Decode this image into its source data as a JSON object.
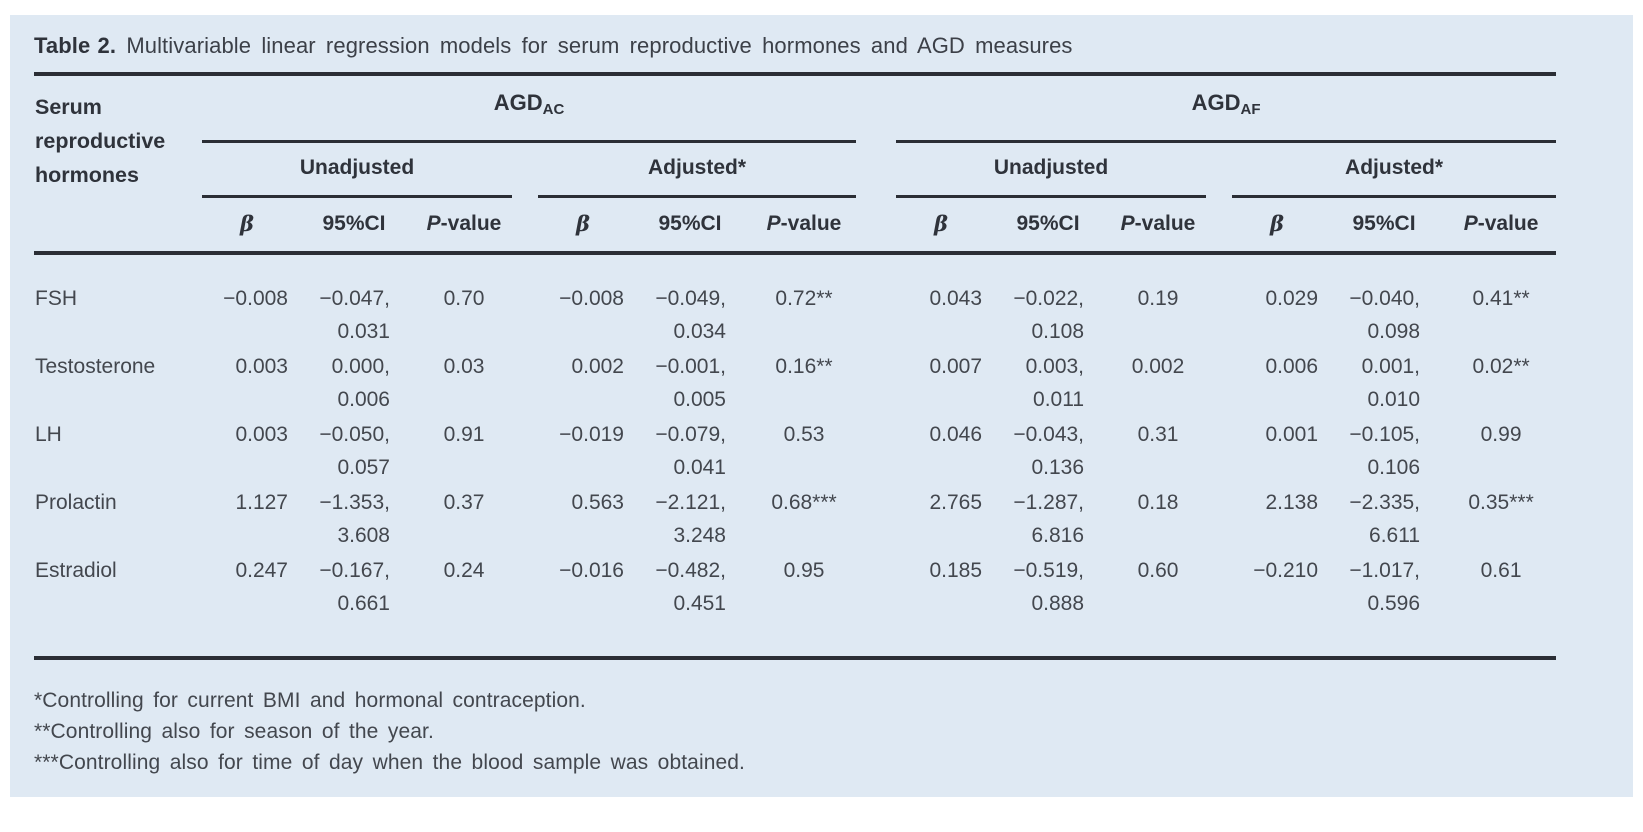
{
  "title": {
    "label": "Table 2.",
    "text": "Multivariable linear regression models for serum reproductive hormones and AGD measures"
  },
  "header": {
    "row_header": "Serum reproductive hormones",
    "group1": {
      "name": "AGD",
      "sub": "AC"
    },
    "group2": {
      "name": "AGD",
      "sub": "AF"
    },
    "sub_unadjusted": "Unadjusted",
    "sub_adjusted": "Adjusted*",
    "beta": "β",
    "ci": "95%CI",
    "p_italic": "P",
    "p_rest": "-value"
  },
  "rows": [
    {
      "hormone": "FSH",
      "c": [
        {
          "b": "−0.008",
          "ci1": "−0.047,",
          "ci2": "0.031",
          "p": "0.70"
        },
        {
          "b": "−0.008",
          "ci1": "−0.049,",
          "ci2": "0.034",
          "p": "0.72**"
        },
        {
          "b": "0.043",
          "ci1": "−0.022,",
          "ci2": "0.108",
          "p": "0.19"
        },
        {
          "b": "0.029",
          "ci1": "−0.040,",
          "ci2": "0.098",
          "p": "0.41**"
        }
      ]
    },
    {
      "hormone": "Testosterone",
      "c": [
        {
          "b": "0.003",
          "ci1": "0.000,",
          "ci2": "0.006",
          "p": "0.03"
        },
        {
          "b": "0.002",
          "ci1": "−0.001,",
          "ci2": "0.005",
          "p": "0.16**"
        },
        {
          "b": "0.007",
          "ci1": "0.003,",
          "ci2": "0.011",
          "p": "0.002"
        },
        {
          "b": "0.006",
          "ci1": "0.001,",
          "ci2": "0.010",
          "p": "0.02**"
        }
      ]
    },
    {
      "hormone": "LH",
      "c": [
        {
          "b": "0.003",
          "ci1": "−0.050,",
          "ci2": "0.057",
          "p": "0.91"
        },
        {
          "b": "−0.019",
          "ci1": "−0.079,",
          "ci2": "0.041",
          "p": "0.53"
        },
        {
          "b": "0.046",
          "ci1": "−0.043,",
          "ci2": "0.136",
          "p": "0.31"
        },
        {
          "b": "0.001",
          "ci1": "−0.105,",
          "ci2": "0.106",
          "p": "0.99"
        }
      ]
    },
    {
      "hormone": "Prolactin",
      "c": [
        {
          "b": "1.127",
          "ci1": "−1.353,",
          "ci2": "3.608",
          "p": "0.37"
        },
        {
          "b": "0.563",
          "ci1": "−2.121,",
          "ci2": "3.248",
          "p": "0.68***"
        },
        {
          "b": "2.765",
          "ci1": "−1.287,",
          "ci2": "6.816",
          "p": "0.18"
        },
        {
          "b": "2.138",
          "ci1": "−2.335,",
          "ci2": "6.611",
          "p": "0.35***"
        }
      ]
    },
    {
      "hormone": "Estradiol",
      "c": [
        {
          "b": "0.247",
          "ci1": "−0.167,",
          "ci2": "0.661",
          "p": "0.24"
        },
        {
          "b": "−0.016",
          "ci1": "−0.482,",
          "ci2": "0.451",
          "p": "0.95"
        },
        {
          "b": "0.185",
          "ci1": "−0.519,",
          "ci2": "0.888",
          "p": "0.60"
        },
        {
          "b": "−0.210",
          "ci1": "−1.017,",
          "ci2": "0.596",
          "p": "0.61"
        }
      ]
    }
  ],
  "footnotes": [
    "*Controlling for current BMI and hormonal contraception.",
    "**Controlling also for season of the year.",
    "***Controlling also for time of day when the blood sample was obtained."
  ],
  "colors": {
    "panel_bg": "#dfe9f3",
    "rule": "#2b2e35",
    "heading_text": "#2f333b",
    "body_text": "#43474e"
  }
}
